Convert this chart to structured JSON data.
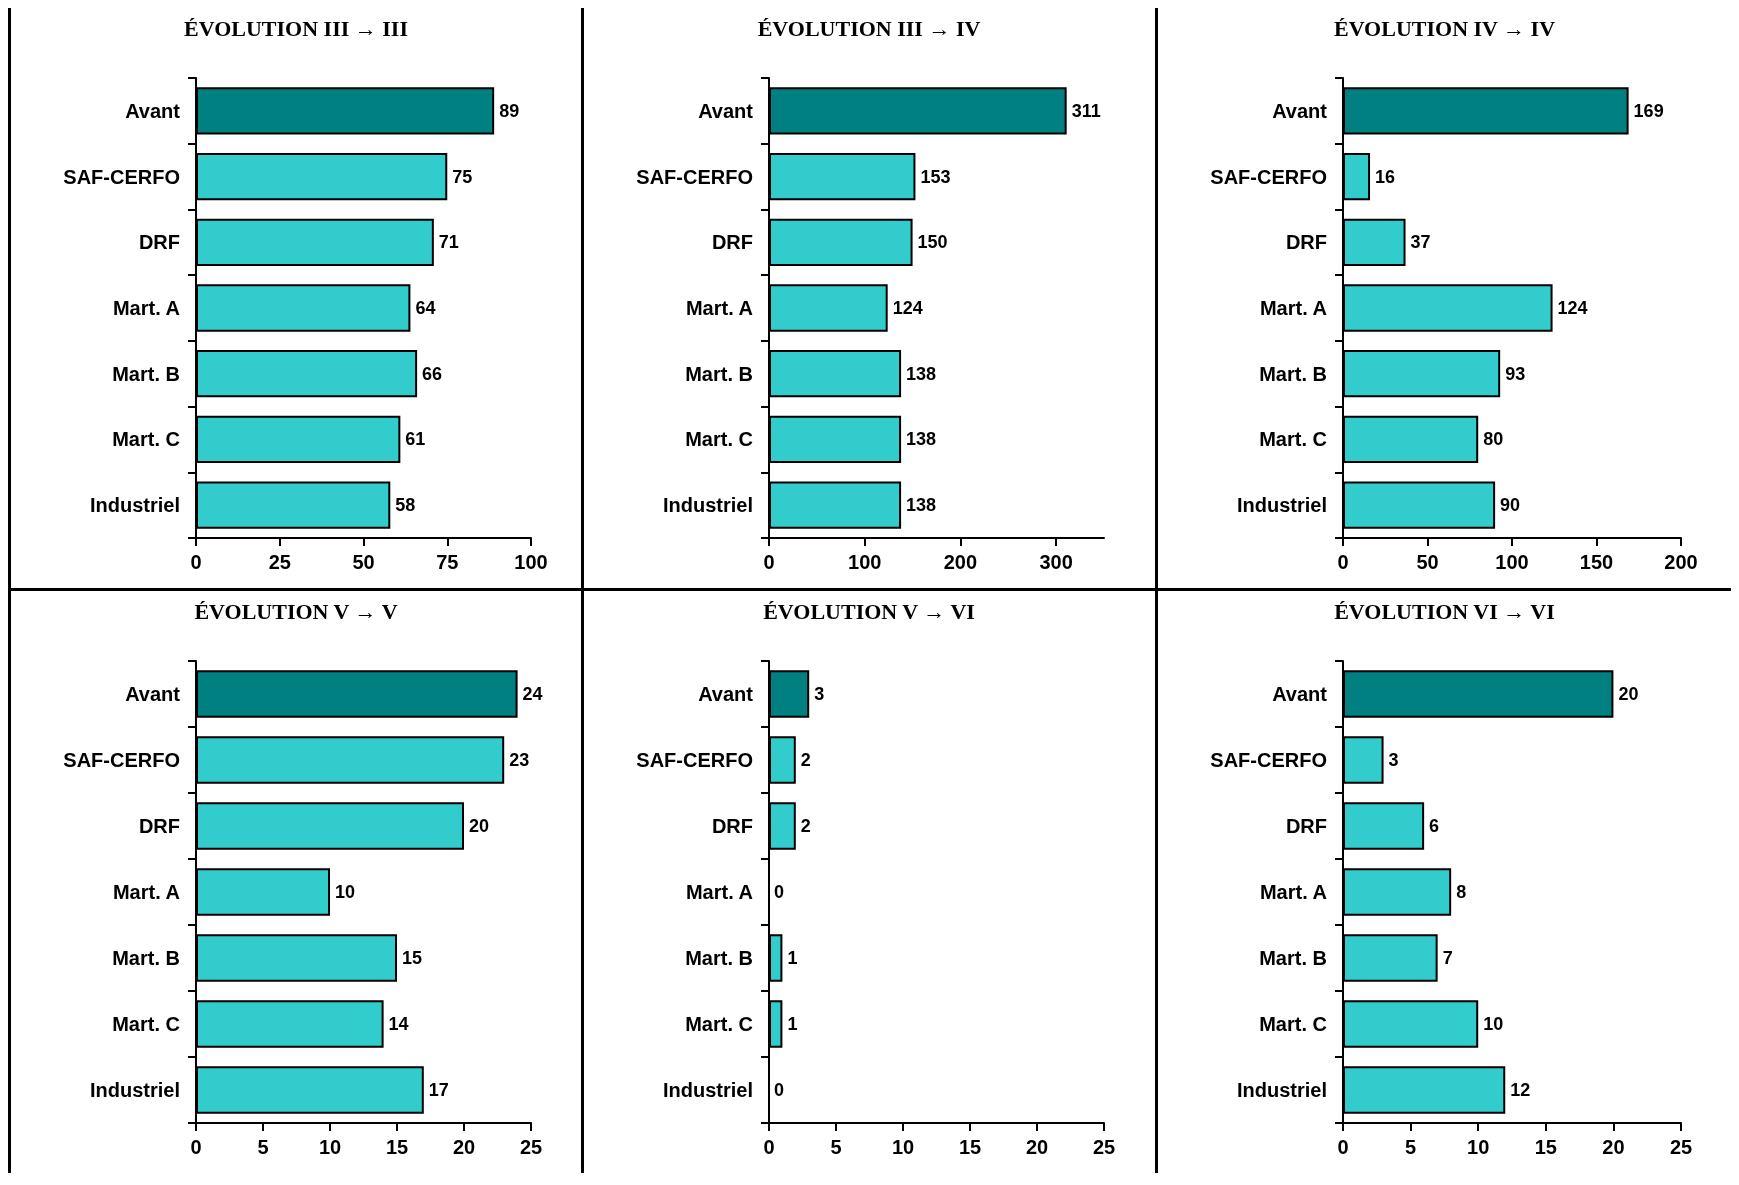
{
  "chart_data": [
    {
      "type": "bar",
      "orientation": "horizontal",
      "title": "ÉVOLUTION III → III",
      "categories": [
        "Avant",
        "SAF-CERFO",
        "DRF",
        "Mart. A",
        "Mart. B",
        "Mart. C",
        "Industriel"
      ],
      "values": [
        89,
        75,
        71,
        64,
        66,
        61,
        58
      ],
      "colors": [
        "#008080",
        "#33cccc",
        "#33cccc",
        "#33cccc",
        "#33cccc",
        "#33cccc",
        "#33cccc"
      ],
      "xlim": [
        0,
        100
      ],
      "xticks": [
        0,
        25,
        50,
        75,
        100
      ],
      "data_labels": true
    },
    {
      "type": "bar",
      "orientation": "horizontal",
      "title": "ÉVOLUTION III → IV",
      "categories": [
        "Avant",
        "SAF-CERFO",
        "DRF",
        "Mart. A",
        "Mart. B",
        "Mart. C",
        "Industriel"
      ],
      "values": [
        311,
        153,
        150,
        124,
        138,
        138,
        138
      ],
      "colors": [
        "#008080",
        "#33cccc",
        "#33cccc",
        "#33cccc",
        "#33cccc",
        "#33cccc",
        "#33cccc"
      ],
      "xlim": [
        0,
        350
      ],
      "xticks": [
        0,
        100,
        200,
        300
      ],
      "data_labels": true
    },
    {
      "type": "bar",
      "orientation": "horizontal",
      "title": "ÉVOLUTION IV → IV",
      "categories": [
        "Avant",
        "SAF-CERFO",
        "DRF",
        "Mart. A",
        "Mart. B",
        "Mart. C",
        "Industriel"
      ],
      "values": [
        169,
        16,
        37,
        124,
        93,
        80,
        90
      ],
      "colors": [
        "#008080",
        "#33cccc",
        "#33cccc",
        "#33cccc",
        "#33cccc",
        "#33cccc",
        "#33cccc"
      ],
      "xlim": [
        0,
        200
      ],
      "xticks": [
        0,
        50,
        100,
        150,
        200
      ],
      "data_labels": true
    },
    {
      "type": "bar",
      "orientation": "horizontal",
      "title": "ÉVOLUTION V → V",
      "categories": [
        "Avant",
        "SAF-CERFO",
        "DRF",
        "Mart. A",
        "Mart. B",
        "Mart. C",
        "Industriel"
      ],
      "values": [
        24,
        23,
        20,
        10,
        15,
        14,
        17
      ],
      "colors": [
        "#008080",
        "#33cccc",
        "#33cccc",
        "#33cccc",
        "#33cccc",
        "#33cccc",
        "#33cccc"
      ],
      "xlim": [
        0,
        25
      ],
      "xticks": [
        0,
        5,
        10,
        15,
        20,
        25
      ],
      "data_labels": true
    },
    {
      "type": "bar",
      "orientation": "horizontal",
      "title": "ÉVOLUTION V → VI",
      "categories": [
        "Avant",
        "SAF-CERFO",
        "DRF",
        "Mart. A",
        "Mart. B",
        "Mart. C",
        "Industriel"
      ],
      "values": [
        3,
        2,
        2,
        0,
        1,
        1,
        0
      ],
      "colors": [
        "#008080",
        "#33cccc",
        "#33cccc",
        "#33cccc",
        "#33cccc",
        "#33cccc",
        "#33cccc"
      ],
      "xlim": [
        0,
        25
      ],
      "xticks": [
        0,
        5,
        10,
        15,
        20,
        25
      ],
      "data_labels": true
    },
    {
      "type": "bar",
      "orientation": "horizontal",
      "title": "ÉVOLUTION VI → VI",
      "categories": [
        "Avant",
        "SAF-CERFO",
        "DRF",
        "Mart. A",
        "Mart. B",
        "Mart. C",
        "Industriel"
      ],
      "values": [
        20,
        3,
        6,
        8,
        7,
        10,
        12
      ],
      "colors": [
        "#008080",
        "#33cccc",
        "#33cccc",
        "#33cccc",
        "#33cccc",
        "#33cccc",
        "#33cccc"
      ],
      "xlim": [
        0,
        25
      ],
      "xticks": [
        0,
        5,
        10,
        15,
        20,
        25
      ],
      "data_labels": true
    }
  ]
}
